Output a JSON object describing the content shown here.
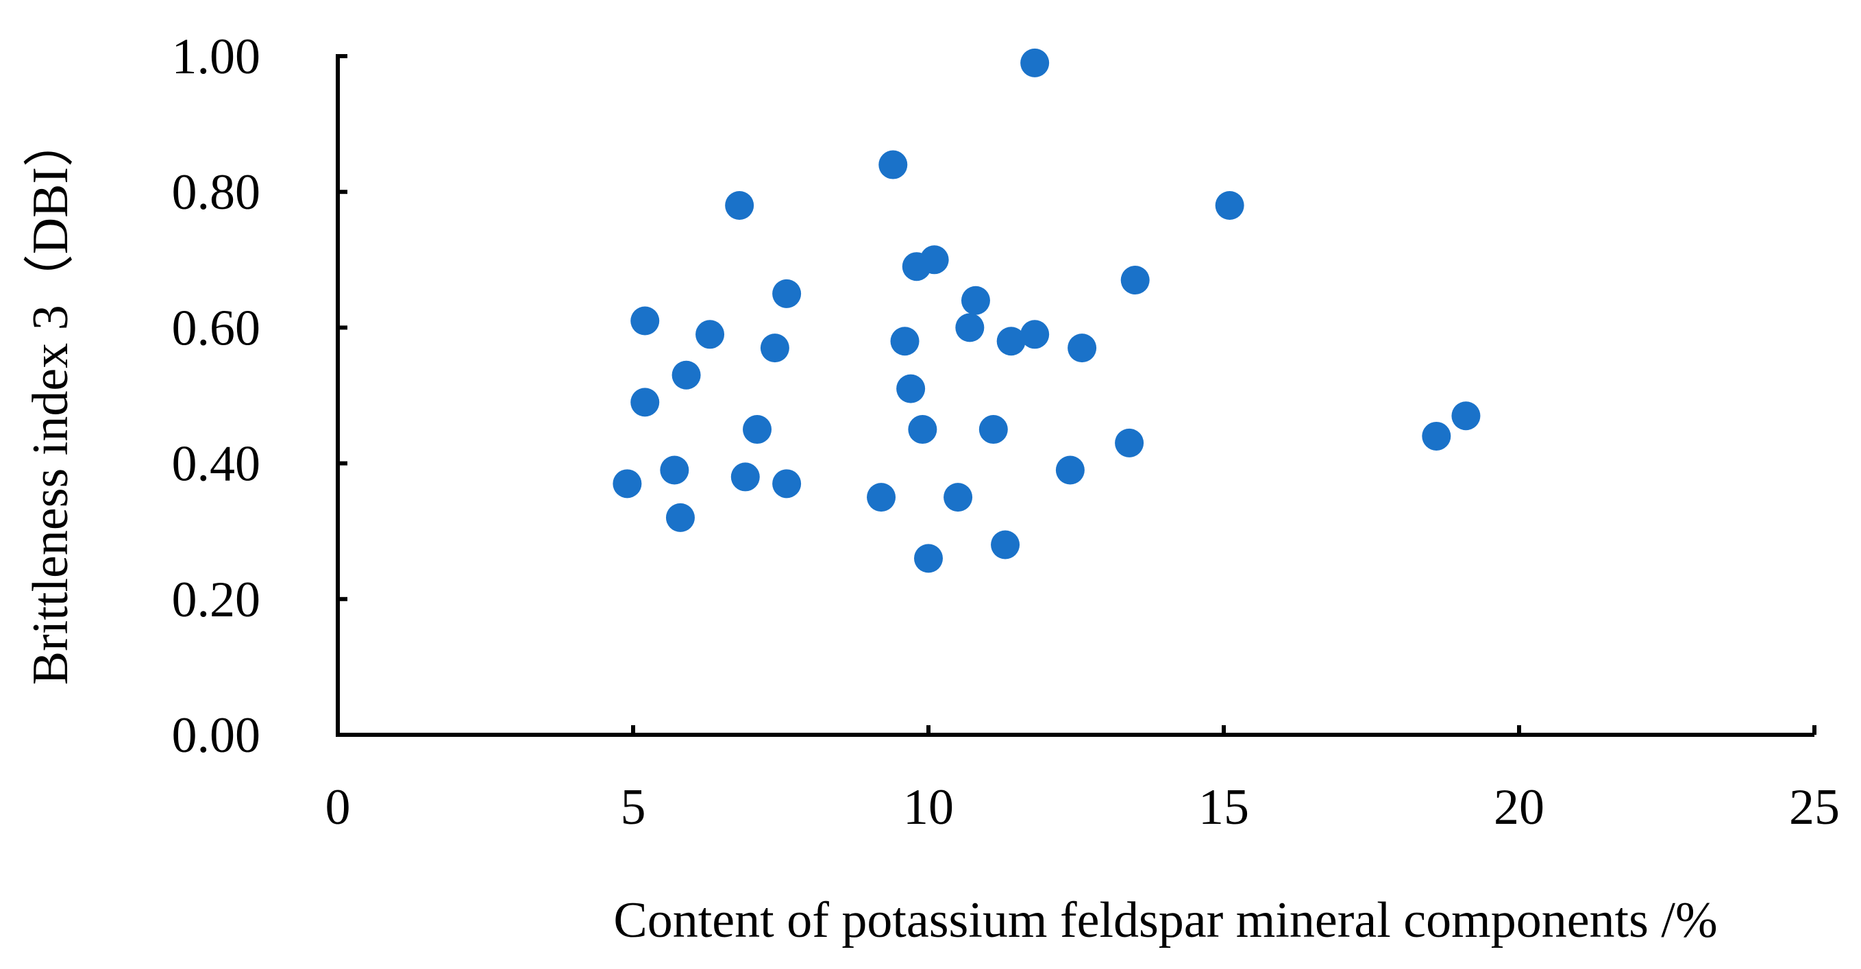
{
  "colors": {
    "point": "#1a72c9",
    "axis": "#000000",
    "background": "#ffffff"
  },
  "chart_data": {
    "type": "scatter",
    "xlabel": "Content of potassium feldspar mineral components /%",
    "ylabel": "Brittleness index 3（DBI）",
    "xlim": [
      0,
      25
    ],
    "ylim": [
      0,
      1.0
    ],
    "x_ticks": [
      "0",
      "5",
      "10",
      "15",
      "20",
      "25"
    ],
    "y_ticks": [
      "0.00",
      "0.20",
      "0.40",
      "0.60",
      "0.80",
      "1.00"
    ],
    "grid": false,
    "legend": "none",
    "points": [
      {
        "x": 4.9,
        "y": 0.37
      },
      {
        "x": 5.2,
        "y": 0.61
      },
      {
        "x": 5.2,
        "y": 0.49
      },
      {
        "x": 5.7,
        "y": 0.39
      },
      {
        "x": 5.8,
        "y": 0.32
      },
      {
        "x": 5.9,
        "y": 0.53
      },
      {
        "x": 6.3,
        "y": 0.59
      },
      {
        "x": 6.8,
        "y": 0.78
      },
      {
        "x": 6.9,
        "y": 0.38
      },
      {
        "x": 7.1,
        "y": 0.45
      },
      {
        "x": 7.4,
        "y": 0.57
      },
      {
        "x": 7.6,
        "y": 0.65
      },
      {
        "x": 7.6,
        "y": 0.37
      },
      {
        "x": 9.2,
        "y": 0.35
      },
      {
        "x": 9.4,
        "y": 0.84
      },
      {
        "x": 9.6,
        "y": 0.58
      },
      {
        "x": 9.7,
        "y": 0.51
      },
      {
        "x": 9.8,
        "y": 0.69
      },
      {
        "x": 9.9,
        "y": 0.45
      },
      {
        "x": 10.0,
        "y": 0.26
      },
      {
        "x": 10.1,
        "y": 0.7
      },
      {
        "x": 10.5,
        "y": 0.35
      },
      {
        "x": 10.7,
        "y": 0.6
      },
      {
        "x": 10.8,
        "y": 0.64
      },
      {
        "x": 11.1,
        "y": 0.45
      },
      {
        "x": 11.3,
        "y": 0.28
      },
      {
        "x": 11.4,
        "y": 0.58
      },
      {
        "x": 11.8,
        "y": 0.59
      },
      {
        "x": 11.8,
        "y": 0.99
      },
      {
        "x": 12.4,
        "y": 0.39
      },
      {
        "x": 12.6,
        "y": 0.57
      },
      {
        "x": 13.4,
        "y": 0.43
      },
      {
        "x": 13.5,
        "y": 0.67
      },
      {
        "x": 15.1,
        "y": 0.78
      },
      {
        "x": 18.6,
        "y": 0.44
      },
      {
        "x": 19.1,
        "y": 0.47
      }
    ]
  }
}
